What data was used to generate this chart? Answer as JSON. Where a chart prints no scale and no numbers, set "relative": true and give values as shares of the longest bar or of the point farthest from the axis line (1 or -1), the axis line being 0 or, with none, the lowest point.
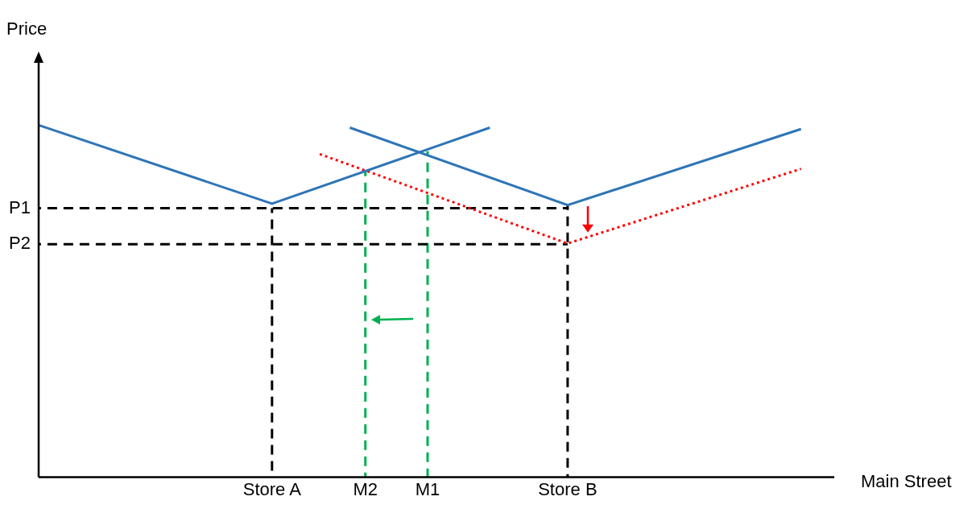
{
  "chart_data": {
    "type": "line",
    "relative": true,
    "xlabel": "Main Street",
    "ylabel": "Price",
    "legend": false,
    "grid": false,
    "marker": "none",
    "categories": [
      null,
      null,
      null,
      null,
      null,
      null,
      null,
      null,
      null,
      null,
      null,
      null,
      null,
      null,
      null,
      "Store A",
      null,
      null,
      null,
      null,
      null,
      "M2",
      null,
      null,
      null,
      "M1",
      null,
      null,
      null,
      null,
      null,
      null,
      null,
      null,
      "Store B",
      null,
      null,
      null,
      null,
      null,
      null,
      null,
      null,
      null,
      null,
      null,
      null,
      null,
      null,
      null,
      null
    ],
    "series": [
      {
        "type": "line",
        "color": "#2e75b6",
        "line_style": "solid",
        "values": [
          1.0,
          null,
          null,
          null,
          null,
          null,
          null,
          null,
          null,
          null,
          null,
          null,
          null,
          null,
          null,
          0.777,
          null,
          null,
          null,
          null,
          null,
          null,
          null,
          null,
          null,
          null,
          null,
          null,
          null,
          0.993,
          null,
          null,
          null,
          null,
          null,
          null,
          null,
          null,
          null,
          null,
          null,
          null,
          null,
          null,
          null,
          null,
          null,
          null,
          null,
          null,
          null
        ]
      },
      {
        "type": "line",
        "color": "#2e75b6",
        "line_style": "solid",
        "values": [
          null,
          null,
          null,
          null,
          null,
          null,
          null,
          null,
          null,
          null,
          null,
          null,
          null,
          null,
          null,
          null,
          null,
          null,
          null,
          null,
          0.993,
          null,
          null,
          null,
          null,
          null,
          null,
          null,
          null,
          null,
          null,
          null,
          null,
          null,
          0.773,
          null,
          null,
          null,
          null,
          null,
          null,
          null,
          null,
          null,
          null,
          null,
          null,
          null,
          null,
          0.989,
          null
        ]
      },
      {
        "type": "line",
        "color": "#ff0000",
        "line_style": "dotted",
        "values": [
          null,
          null,
          null,
          null,
          null,
          null,
          null,
          null,
          null,
          null,
          null,
          null,
          null,
          null,
          null,
          null,
          null,
          null,
          0.919,
          null,
          null,
          null,
          null,
          null,
          null,
          null,
          null,
          null,
          null,
          null,
          null,
          null,
          null,
          null,
          0.664,
          null,
          null,
          null,
          null,
          null,
          null,
          null,
          null,
          null,
          null,
          null,
          null,
          null,
          null,
          0.876,
          null
        ]
      },
      {
        "type": "line",
        "name": "P1",
        "color": "#000000",
        "line_style": "dashed",
        "values": [
          0.764,
          null,
          null,
          null,
          null,
          null,
          null,
          null,
          null,
          null,
          null,
          null,
          null,
          null,
          null,
          null,
          null,
          null,
          null,
          null,
          null,
          null,
          null,
          null,
          null,
          null,
          null,
          null,
          null,
          null,
          null,
          null,
          null,
          null,
          0.764,
          null,
          null,
          null,
          null,
          null,
          null,
          null,
          null,
          null,
          null,
          null,
          null,
          null,
          null,
          null,
          null
        ]
      },
      {
        "type": "line",
        "name": "P2",
        "color": "#000000",
        "line_style": "dashed",
        "values": [
          0.662,
          null,
          null,
          null,
          null,
          null,
          null,
          null,
          null,
          null,
          null,
          null,
          null,
          null,
          null,
          null,
          null,
          null,
          null,
          null,
          null,
          null,
          null,
          null,
          null,
          null,
          null,
          null,
          null,
          null,
          null,
          null,
          null,
          null,
          0.662,
          null,
          null,
          null,
          null,
          null,
          null,
          null,
          null,
          null,
          null,
          null,
          null,
          null,
          null,
          null,
          null
        ]
      },
      {
        "type": "line",
        "color": "#000000",
        "line_style": "dashed",
        "x": [
          "Store A",
          "Store A"
        ],
        "values": [
          0,
          0.764
        ]
      },
      {
        "type": "line",
        "color": "#000000",
        "line_style": "dashed",
        "x": [
          "Store B",
          "Store B"
        ],
        "values": [
          0,
          0.773
        ]
      },
      {
        "type": "line",
        "color": "#00b050",
        "line_style": "dashed",
        "x": [
          "M2",
          "M2"
        ],
        "values": [
          0,
          0.869
        ]
      },
      {
        "type": "line",
        "color": "#00b050",
        "line_style": "dashed",
        "x": [
          "M1",
          "M1"
        ],
        "values": [
          0,
          0.926
        ]
      }
    ]
  }
}
